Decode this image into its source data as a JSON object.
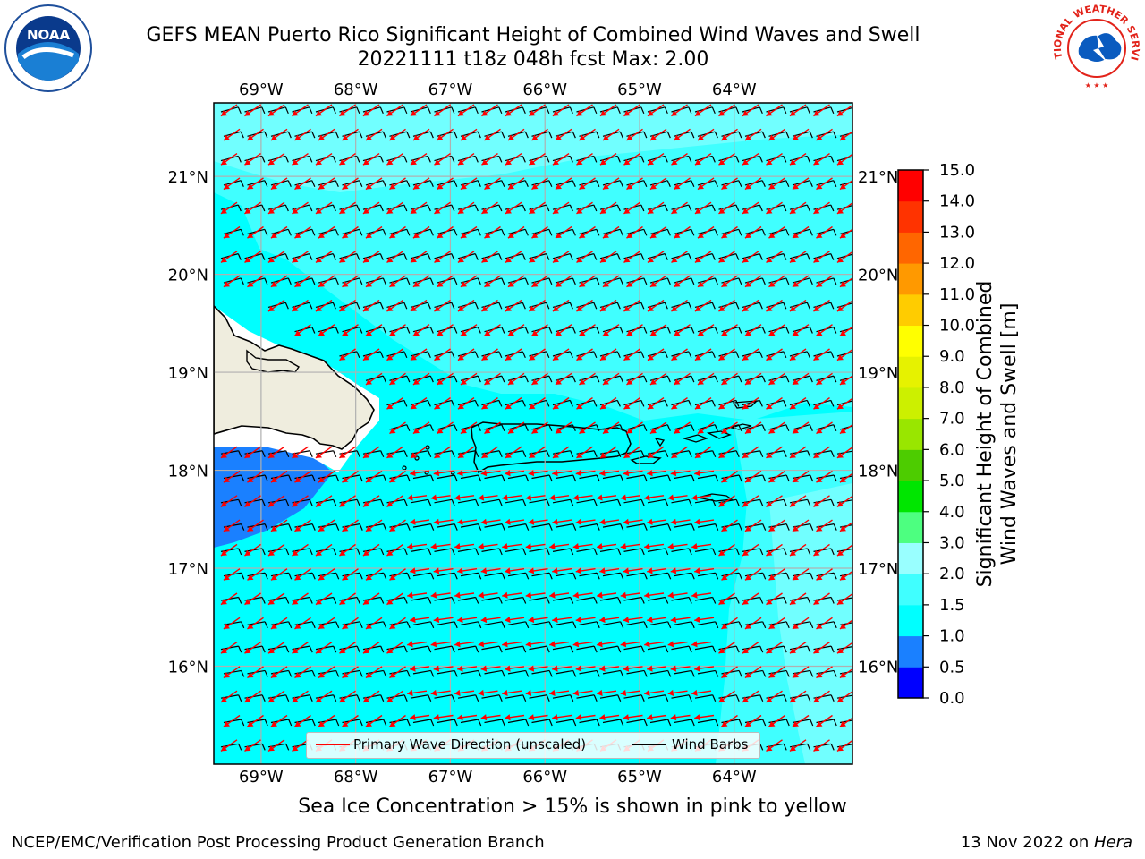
{
  "title": {
    "line1": "GEFS MEAN Puerto Rico Significant Height of Combined Wind Waves and Swell",
    "line2": "20221111 t18z 048h fcst   Max: 2.00"
  },
  "subtitle": "Sea Ice Concentration > 15% is shown in pink to yellow",
  "footer": {
    "left": "NCEP/EMC/Verification Post Processing Product Generation Branch",
    "date": "13 Nov 2022 on ",
    "machine": "Hera"
  },
  "logos": {
    "left": {
      "name": "noaa-logo",
      "text": "NOAA"
    },
    "right": {
      "name": "nws-logo",
      "text": "NATIONAL WEATHER SERVICE"
    }
  },
  "map": {
    "lon_ticks": [
      "69°W",
      "68°W",
      "67°W",
      "66°W",
      "65°W",
      "64°W"
    ],
    "lat_ticks": [
      "21°N",
      "20°N",
      "19°N",
      "18°N",
      "17°N",
      "16°N"
    ],
    "lon_range": [
      -69.5,
      -62.75
    ],
    "lat_range": [
      15.0,
      21.75
    ],
    "land_color": "#efedde",
    "ocean_colors": {
      "1.0-1.5": "#00ffff",
      "1.5-2.0": "#40ffff",
      "2.0-3.0": "#99ffff",
      "0.5-1.0": "#1a80ff"
    }
  },
  "legend": {
    "wave_dir_label": "Primary Wave Direction (unscaled)",
    "wind_barbs_label": "Wind Barbs",
    "wave_dir_color": "#ff0000",
    "wind_barbs_color": "#000000"
  },
  "colorbar": {
    "label_line1": "Significant Height of Combined",
    "label_line2": "Wind Waves and Swell [m]",
    "ticks": [
      "0.0",
      "0.5",
      "1.0",
      "1.5",
      "2.0",
      "3.0",
      "4.0",
      "5.0",
      "6.0",
      "7.0",
      "8.0",
      "9.0",
      "10.0",
      "11.0",
      "12.0",
      "13.0",
      "14.0",
      "15.0"
    ],
    "colors": [
      "#0000ff",
      "#1a80ff",
      "#00ffff",
      "#40ffff",
      "#99ffff",
      "#4dff80",
      "#00e600",
      "#4dcc00",
      "#99e600",
      "#ccf000",
      "#e6f200",
      "#ffff00",
      "#ffcc00",
      "#ff9900",
      "#ff6600",
      "#ff3300",
      "#ff0000"
    ]
  }
}
